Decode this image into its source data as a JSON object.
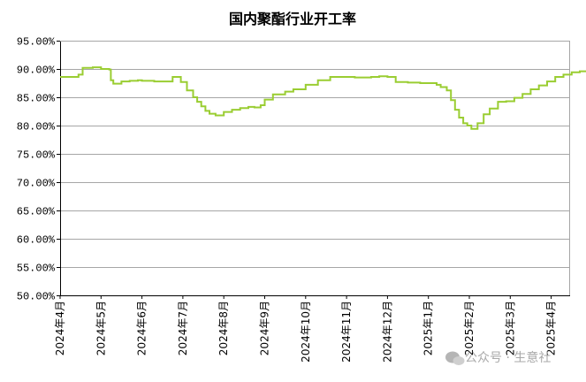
{
  "chart_data": {
    "type": "line",
    "title": "国内聚酯行业开工率",
    "xlabel": "",
    "ylabel": "",
    "ylim": [
      50,
      95
    ],
    "y_ticks": [
      "95.00%",
      "90.00%",
      "85.00%",
      "80.00%",
      "75.00%",
      "70.00%",
      "65.00%",
      "60.00%",
      "55.00%",
      "50.00%"
    ],
    "x_ticks": [
      "2024年4月",
      "2024年5月",
      "2024年6月",
      "2024年7月",
      "2024年8月",
      "2024年9月",
      "2024年10月",
      "2024年11月",
      "2024年12月",
      "2025年1月",
      "2025年2月",
      "2025年3月",
      "2025年4月"
    ],
    "grid": "horizontal",
    "legend": "none",
    "series": [
      {
        "color": "#9acd32",
        "x": [
          0,
          0.4,
          0.45,
          0.55,
          0.8,
          1.0,
          1.2,
          1.24,
          1.3,
          1.5,
          1.7,
          1.9,
          2.0,
          2.3,
          2.5,
          2.75,
          2.95,
          3.1,
          3.25,
          3.35,
          3.45,
          3.55,
          3.65,
          3.8,
          4.0,
          4.2,
          4.4,
          4.6,
          4.75,
          4.9,
          5.0,
          5.2,
          5.5,
          5.7,
          6.0,
          6.3,
          6.6,
          6.9,
          7.2,
          7.4,
          7.6,
          7.8,
          8.0,
          8.2,
          8.5,
          8.8,
          9.0,
          9.2,
          9.3,
          9.45,
          9.55,
          9.65,
          9.75,
          9.85,
          9.95,
          10.05,
          10.2,
          10.35,
          10.5,
          10.7,
          10.9,
          11.1,
          11.3,
          11.5,
          11.7,
          11.9,
          12.1,
          12.3,
          12.5,
          12.7,
          12.86
        ],
        "y": [
          88.6,
          88.6,
          89.0,
          90.2,
          90.3,
          90.0,
          89.9,
          88.0,
          87.4,
          87.8,
          87.9,
          88.0,
          87.9,
          87.8,
          87.8,
          88.6,
          87.7,
          86.2,
          85.0,
          84.2,
          83.4,
          82.6,
          82.1,
          81.8,
          82.4,
          82.8,
          83.1,
          83.3,
          83.2,
          83.6,
          84.6,
          85.5,
          86.0,
          86.4,
          87.2,
          88.0,
          88.6,
          88.6,
          88.5,
          88.5,
          88.6,
          88.7,
          88.6,
          87.7,
          87.6,
          87.5,
          87.5,
          87.2,
          86.8,
          86.2,
          84.5,
          82.8,
          81.4,
          80.4,
          80.0,
          79.4,
          80.4,
          82.0,
          83.0,
          84.2,
          84.3,
          84.9,
          85.6,
          86.4,
          87.1,
          87.8,
          88.6,
          89.0,
          89.4,
          89.6,
          89.7
        ]
      }
    ]
  },
  "watermark": {
    "text": "公众号 · 生意社"
  }
}
